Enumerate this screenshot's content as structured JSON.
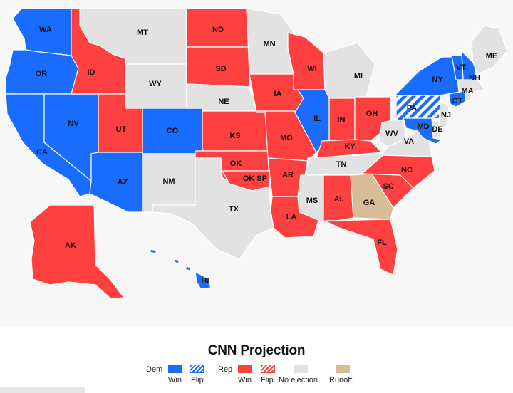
{
  "colors": {
    "dem_win": "#1a6cff",
    "rep_win": "#ff4040",
    "no_election": "#e2e2e2",
    "runoff": "#d8bc96"
  },
  "states": [
    {
      "id": "WA",
      "label": "WA",
      "status": "dem_win"
    },
    {
      "id": "OR",
      "label": "OR",
      "status": "dem_win"
    },
    {
      "id": "CA",
      "label": "CA",
      "status": "dem_win"
    },
    {
      "id": "NV",
      "label": "NV",
      "status": "dem_win"
    },
    {
      "id": "ID",
      "label": "ID",
      "status": "rep_win"
    },
    {
      "id": "MT",
      "label": "MT",
      "status": "no_election"
    },
    {
      "id": "WY",
      "label": "WY",
      "status": "no_election"
    },
    {
      "id": "UT",
      "label": "UT",
      "status": "rep_win"
    },
    {
      "id": "AZ",
      "label": "AZ",
      "status": "dem_win"
    },
    {
      "id": "CO",
      "label": "CO",
      "status": "dem_win"
    },
    {
      "id": "NM",
      "label": "NM",
      "status": "no_election"
    },
    {
      "id": "ND",
      "label": "ND",
      "status": "rep_win"
    },
    {
      "id": "SD",
      "label": "SD",
      "status": "rep_win"
    },
    {
      "id": "NE",
      "label": "NE",
      "status": "no_election"
    },
    {
      "id": "KS",
      "label": "KS",
      "status": "rep_win"
    },
    {
      "id": "OK",
      "label": "OK",
      "status": "rep_win"
    },
    {
      "id": "TX",
      "label": "TX",
      "status": "no_election"
    },
    {
      "id": "MN",
      "label": "MN",
      "status": "no_election"
    },
    {
      "id": "IA",
      "label": "IA",
      "status": "rep_win"
    },
    {
      "id": "MO",
      "label": "MO",
      "status": "rep_win"
    },
    {
      "id": "AR",
      "label": "AR",
      "status": "rep_win"
    },
    {
      "id": "LA",
      "label": "LA",
      "status": "rep_win"
    },
    {
      "id": "WI",
      "label": "WI",
      "status": "rep_win"
    },
    {
      "id": "IL",
      "label": "IL",
      "status": "dem_win"
    },
    {
      "id": "MI",
      "label": "MI",
      "status": "no_election"
    },
    {
      "id": "IN",
      "label": "IN",
      "status": "rep_win"
    },
    {
      "id": "OH",
      "label": "OH",
      "status": "rep_win"
    },
    {
      "id": "KY",
      "label": "KY",
      "status": "rep_win"
    },
    {
      "id": "TN",
      "label": "TN",
      "status": "no_election"
    },
    {
      "id": "MS",
      "label": "MS",
      "status": "no_election"
    },
    {
      "id": "AL",
      "label": "AL",
      "status": "rep_win"
    },
    {
      "id": "GA",
      "label": "GA",
      "status": "runoff"
    },
    {
      "id": "FL",
      "label": "FL",
      "status": "rep_win"
    },
    {
      "id": "SC",
      "label": "SC",
      "status": "rep_win"
    },
    {
      "id": "NC",
      "label": "NC",
      "status": "rep_win"
    },
    {
      "id": "VA",
      "label": "VA",
      "status": "no_election"
    },
    {
      "id": "WV",
      "label": "WV",
      "status": "no_election"
    },
    {
      "id": "PA",
      "label": "PA",
      "status": "dem_flip"
    },
    {
      "id": "NY",
      "label": "NY",
      "status": "dem_win"
    },
    {
      "id": "NJ",
      "label": "NJ",
      "status": "no_election"
    },
    {
      "id": "DE",
      "label": "DE",
      "status": "no_election"
    },
    {
      "id": "MD",
      "label": "MD",
      "status": "dem_win"
    },
    {
      "id": "CT",
      "label": "CT",
      "status": "dem_win"
    },
    {
      "id": "RI",
      "label": "",
      "status": "no_election"
    },
    {
      "id": "MA",
      "label": "MA",
      "status": "no_election"
    },
    {
      "id": "VT",
      "label": "VT",
      "status": "dem_win"
    },
    {
      "id": "NH",
      "label": "NH",
      "status": "dem_win"
    },
    {
      "id": "ME",
      "label": "ME",
      "status": "no_election"
    },
    {
      "id": "AK",
      "label": "AK",
      "status": "rep_win"
    },
    {
      "id": "HI",
      "label": "HI",
      "status": "dem_win"
    },
    {
      "id": "OKSP",
      "label": "OK SP",
      "status": "rep_win"
    }
  ],
  "legend": {
    "title": "CNN Projection",
    "dem_label": "Dem",
    "rep_label": "Rep",
    "win_label": "Win",
    "flip_label": "Flip",
    "no_election_label": "No election",
    "runoff_label": "Runoff"
  }
}
